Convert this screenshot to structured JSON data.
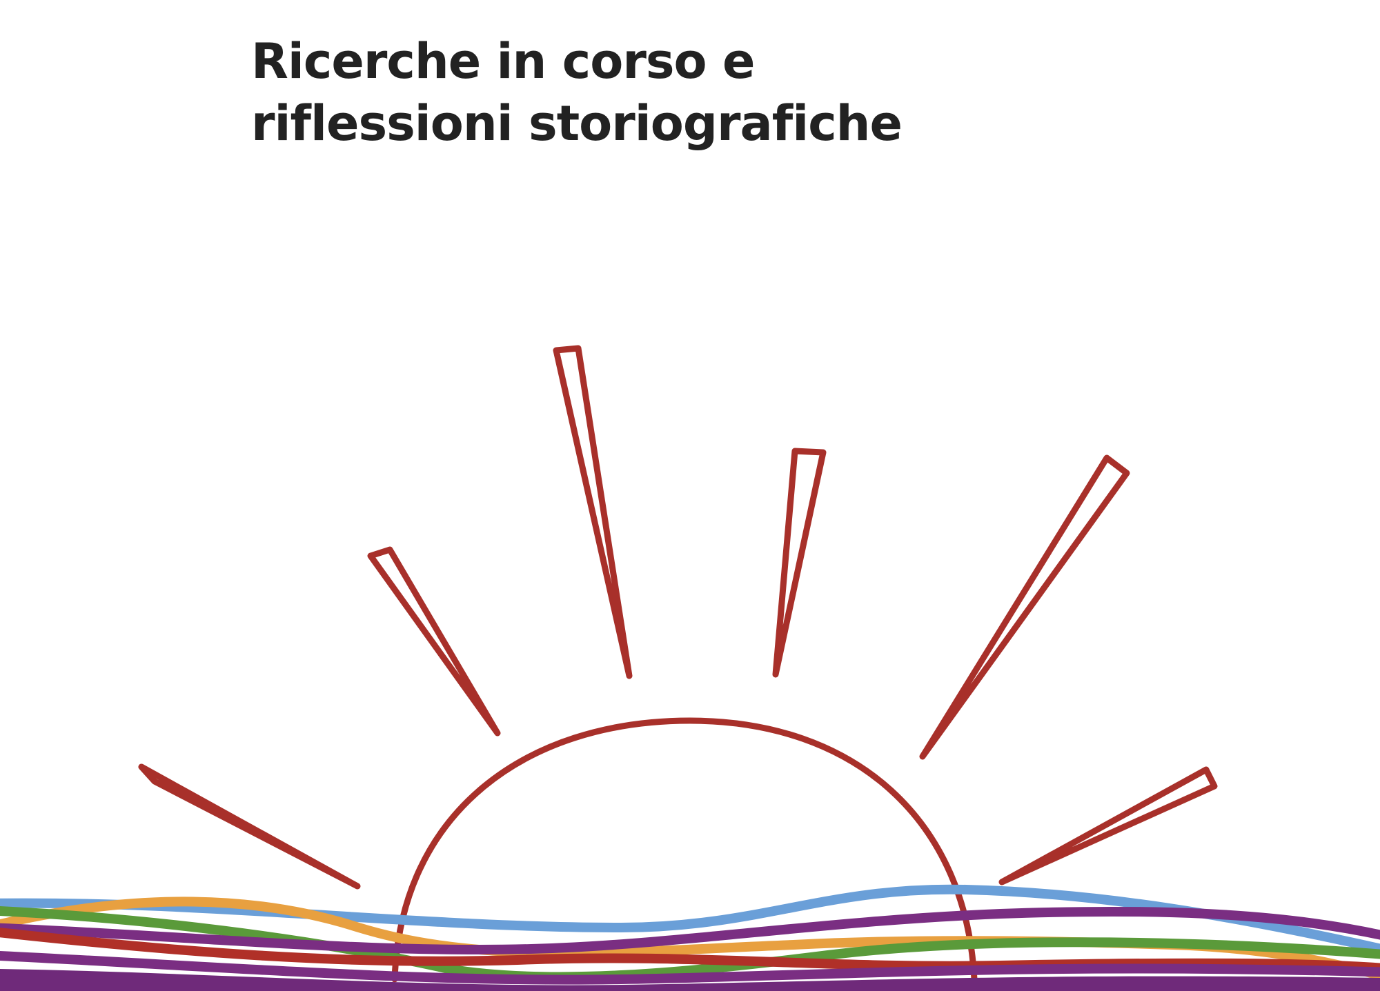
{
  "title": {
    "line1": "Ricerche in corso e",
    "line2": "riflessioni storiografiche"
  },
  "colors": {
    "title_text": "#222222",
    "sun_stroke": "#a8302a",
    "wave_blue": "#6a9fd8",
    "wave_orange": "#e8a040",
    "wave_green": "#5a9a3a",
    "wave_red": "#b03028",
    "wave_purple": "#7a2e82",
    "band_purple": "#6f2a7a"
  },
  "illustration": {
    "icon": "sun-rising-over-waves-icon"
  }
}
